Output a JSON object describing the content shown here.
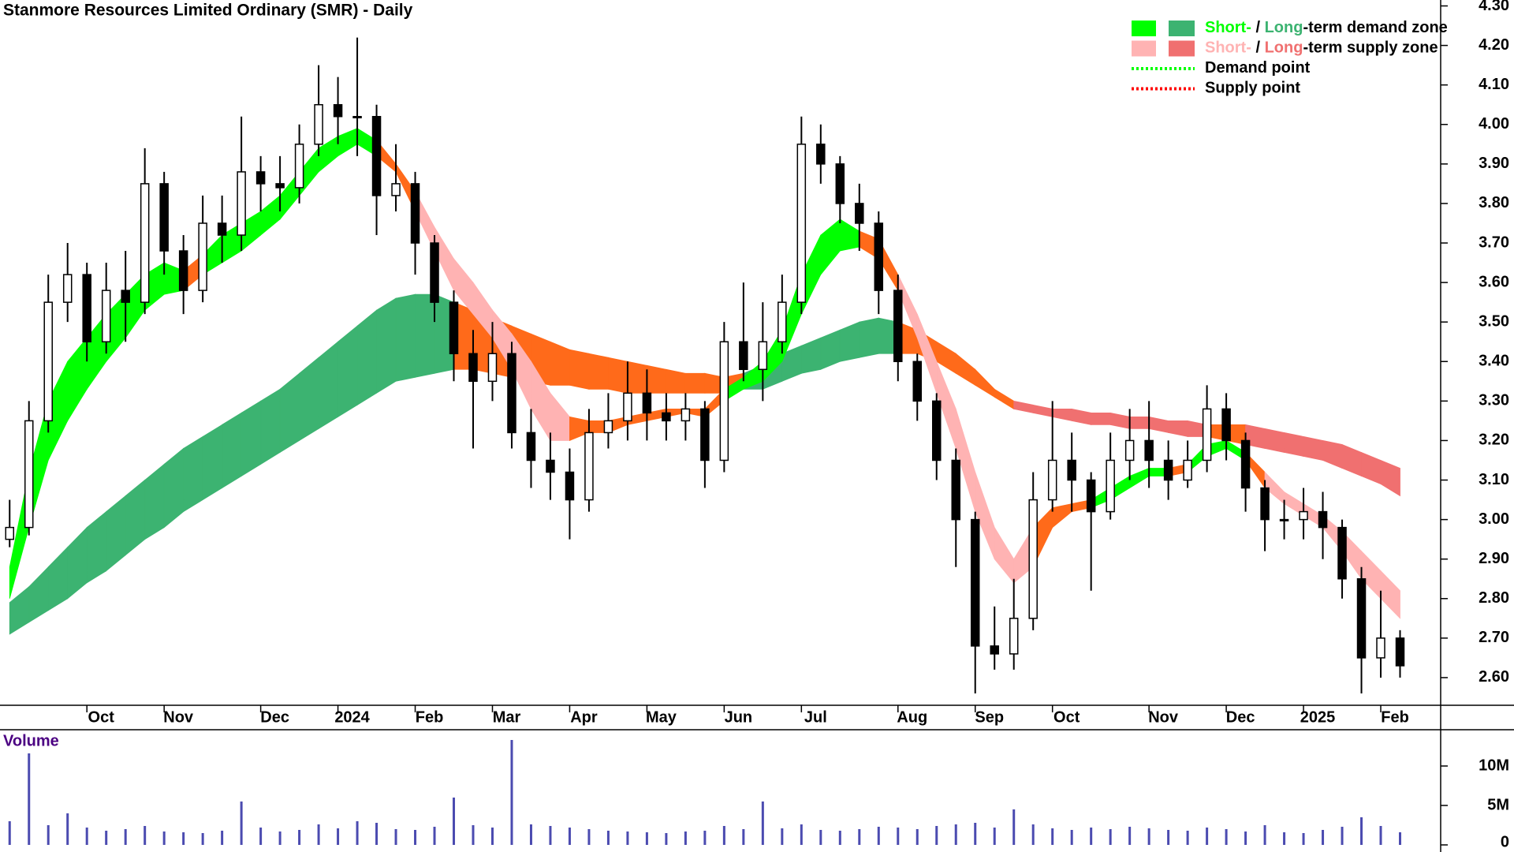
{
  "chart_data": {
    "type": "candlestick",
    "title": "Stanmore Resources Limited Ordinary (SMR) - Daily",
    "categories": [
      null,
      null,
      null,
      null,
      "Oct",
      null,
      null,
      null,
      "Nov",
      null,
      null,
      null,
      null,
      "Dec",
      null,
      null,
      null,
      "2024",
      null,
      null,
      null,
      "Feb",
      null,
      null,
      null,
      "Mar",
      null,
      null,
      null,
      "Apr",
      null,
      null,
      null,
      "May",
      null,
      null,
      null,
      "Jun",
      null,
      null,
      null,
      "Jul",
      null,
      null,
      null,
      null,
      "Aug",
      null,
      null,
      null,
      "Sep",
      null,
      null,
      null,
      "Oct",
      null,
      null,
      null,
      null,
      "Nov",
      null,
      null,
      null,
      "Dec",
      null,
      null,
      null,
      "2025",
      null,
      null,
      null,
      "Feb",
      null
    ],
    "price": {
      "open": [
        2.95,
        2.98,
        3.25,
        3.55,
        3.62,
        3.45,
        3.58,
        3.55,
        3.85,
        3.68,
        3.58,
        3.75,
        3.72,
        3.88,
        3.85,
        3.84,
        3.95,
        4.05,
        4.02,
        4.02,
        3.82,
        3.85,
        3.7,
        3.55,
        3.42,
        3.35,
        3.42,
        3.22,
        3.15,
        3.12,
        3.05,
        3.22,
        3.25,
        3.32,
        3.27,
        3.25,
        3.28,
        3.15,
        3.45,
        3.38,
        3.45,
        3.55,
        3.95,
        3.9,
        3.8,
        3.75,
        3.58,
        3.4,
        3.3,
        3.15,
        3.0,
        2.68,
        2.66,
        2.75,
        3.05,
        3.15,
        3.1,
        3.02,
        3.15,
        3.2,
        3.15,
        3.1,
        3.15,
        3.28,
        3.2,
        3.08,
        3.0,
        3.0,
        3.02,
        2.98,
        2.85,
        2.65,
        2.7
      ],
      "high": [
        3.05,
        3.3,
        3.62,
        3.7,
        3.65,
        3.65,
        3.68,
        3.94,
        3.88,
        3.72,
        3.82,
        3.82,
        4.02,
        3.92,
        3.92,
        4.0,
        4.15,
        4.12,
        4.22,
        4.05,
        3.95,
        3.88,
        3.72,
        3.58,
        3.48,
        3.5,
        3.45,
        3.28,
        3.22,
        3.18,
        3.28,
        3.32,
        3.4,
        3.38,
        3.32,
        3.32,
        3.3,
        3.5,
        3.6,
        3.55,
        3.62,
        4.02,
        4.0,
        3.92,
        3.85,
        3.78,
        3.62,
        3.42,
        3.32,
        3.18,
        3.02,
        2.78,
        2.85,
        3.12,
        3.3,
        3.22,
        3.12,
        3.22,
        3.28,
        3.3,
        3.2,
        3.2,
        3.34,
        3.32,
        3.22,
        3.1,
        3.05,
        3.08,
        3.07,
        3.0,
        2.88,
        2.82,
        2.72
      ],
      "low": [
        2.93,
        2.96,
        3.22,
        3.5,
        3.4,
        3.42,
        3.45,
        3.52,
        3.62,
        3.52,
        3.55,
        3.65,
        3.68,
        3.78,
        3.78,
        3.8,
        3.92,
        3.95,
        3.92,
        3.72,
        3.78,
        3.62,
        3.5,
        3.35,
        3.18,
        3.3,
        3.18,
        3.08,
        3.05,
        2.95,
        3.02,
        3.18,
        3.2,
        3.2,
        3.2,
        3.2,
        3.08,
        3.12,
        3.35,
        3.3,
        3.42,
        3.52,
        3.85,
        3.75,
        3.68,
        3.52,
        3.35,
        3.25,
        3.1,
        2.88,
        2.56,
        2.62,
        2.62,
        2.72,
        3.02,
        3.02,
        2.82,
        3.0,
        3.1,
        3.08,
        3.05,
        3.08,
        3.12,
        3.15,
        3.02,
        2.92,
        2.95,
        2.95,
        2.9,
        2.8,
        2.56,
        2.6,
        2.6
      ],
      "close": [
        2.98,
        3.25,
        3.55,
        3.62,
        3.45,
        3.58,
        3.55,
        3.85,
        3.68,
        3.58,
        3.75,
        3.72,
        3.88,
        3.85,
        3.84,
        3.95,
        4.05,
        4.02,
        4.02,
        3.82,
        3.85,
        3.7,
        3.55,
        3.42,
        3.35,
        3.42,
        3.22,
        3.15,
        3.12,
        3.05,
        3.22,
        3.25,
        3.32,
        3.27,
        3.25,
        3.28,
        3.15,
        3.45,
        3.38,
        3.45,
        3.55,
        3.95,
        3.9,
        3.8,
        3.75,
        3.58,
        3.4,
        3.3,
        3.15,
        3.0,
        2.68,
        2.66,
        2.75,
        3.05,
        3.15,
        3.1,
        3.02,
        3.15,
        3.2,
        3.15,
        3.1,
        3.15,
        3.28,
        3.2,
        3.08,
        3.0,
        3.0,
        3.02,
        2.98,
        2.85,
        2.65,
        2.7,
        2.63
      ]
    },
    "bands": [
      {
        "upper": [
          2.88,
          3.12,
          3.3,
          3.4,
          3.46,
          3.52,
          3.57,
          3.62,
          3.65,
          3.63,
          3.67,
          3.72,
          3.75,
          3.78,
          3.82,
          3.88,
          3.94,
          3.97,
          3.99,
          3.96,
          3.9,
          3.83,
          3.74,
          3.66,
          3.6,
          3.53,
          3.47,
          3.4,
          3.32,
          3.26,
          3.25,
          3.25,
          3.26,
          3.27,
          3.28,
          3.28,
          3.28,
          3.33,
          3.36,
          3.4,
          3.48,
          3.62,
          3.72,
          3.76,
          3.73,
          3.71,
          3.62,
          3.52,
          3.4,
          3.28,
          3.12,
          2.98,
          2.9,
          2.98,
          3.03,
          3.04,
          3.05,
          3.08,
          3.11,
          3.13,
          3.13,
          3.14,
          3.19,
          3.2,
          3.17,
          3.12,
          3.07,
          3.04,
          3.01,
          2.97,
          2.92,
          2.87,
          2.82
        ],
        "lower": [
          2.8,
          2.98,
          3.15,
          3.25,
          3.33,
          3.4,
          3.46,
          3.53,
          3.57,
          3.58,
          3.62,
          3.65,
          3.68,
          3.72,
          3.76,
          3.82,
          3.88,
          3.92,
          3.95,
          3.92,
          3.88,
          3.78,
          3.68,
          3.58,
          3.52,
          3.46,
          3.38,
          3.28,
          3.2,
          3.2,
          3.22,
          3.22,
          3.24,
          3.25,
          3.26,
          3.27,
          3.26,
          3.3,
          3.33,
          3.35,
          3.4,
          3.52,
          3.62,
          3.68,
          3.69,
          3.66,
          3.58,
          3.46,
          3.32,
          3.18,
          3.02,
          2.9,
          2.84,
          2.88,
          2.98,
          3.02,
          3.03,
          3.05,
          3.08,
          3.11,
          3.11,
          3.12,
          3.16,
          3.18,
          3.15,
          3.08,
          3.04,
          3.01,
          2.98,
          2.92,
          2.85,
          2.8,
          2.75
        ],
        "colors": [
          "#00ff00",
          "#00ff00",
          "#00ff00",
          "#00ff00",
          "#00ff00",
          "#00ff00",
          "#00ff00",
          "#00ff00",
          "#00ff00",
          "#ff6a1a",
          "#00ff00",
          "#00ff00",
          "#00ff00",
          "#00ff00",
          "#00ff00",
          "#00ff00",
          "#00ff00",
          "#00ff00",
          "#00ff00",
          "#ff6a1a",
          "#ff6a1a",
          "#ffb3b3",
          "#ffb3b3",
          "#ffb3b3",
          "#ffb3b3",
          "#ffb3b3",
          "#ffb3b3",
          "#ffb3b3",
          "#ffb3b3",
          "#ff6a1a",
          "#ff6a1a",
          "#ff6a1a",
          "#ff6a1a",
          "#ff6a1a",
          "#ff6a1a",
          "#ff6a1a",
          "#ff6a1a",
          "#00ff00",
          "#00ff00",
          "#00ff00",
          "#00ff00",
          "#00ff00",
          "#00ff00",
          "#00ff00",
          "#ff6a1a",
          "#ff6a1a",
          "#ffb3b3",
          "#ffb3b3",
          "#ffb3b3",
          "#ffb3b3",
          "#ffb3b3",
          "#ffb3b3",
          "#ffb3b3",
          "#ff6a1a",
          "#ff6a1a",
          "#ff6a1a",
          "#00ff00",
          "#00ff00",
          "#00ff00",
          "#00ff00",
          "#ff6a1a",
          "#00ff00",
          "#00ff00",
          "#00ff00",
          "#ff6a1a",
          "#ffb3b3",
          "#ffb3b3",
          "#ffb3b3",
          "#ffb3b3",
          "#ffb3b3",
          "#ffb3b3",
          "#ffb3b3",
          "#ffb3b3"
        ]
      },
      {
        "upper": [
          2.79,
          2.83,
          2.88,
          2.93,
          2.98,
          3.02,
          3.06,
          3.1,
          3.14,
          3.18,
          3.21,
          3.24,
          3.27,
          3.3,
          3.33,
          3.37,
          3.41,
          3.45,
          3.49,
          3.53,
          3.56,
          3.57,
          3.57,
          3.55,
          3.53,
          3.51,
          3.49,
          3.47,
          3.45,
          3.43,
          3.42,
          3.41,
          3.4,
          3.39,
          3.38,
          3.37,
          3.37,
          3.36,
          3.37,
          3.39,
          3.42,
          3.44,
          3.46,
          3.48,
          3.5,
          3.51,
          3.5,
          3.48,
          3.45,
          3.42,
          3.38,
          3.33,
          3.3,
          3.29,
          3.28,
          3.28,
          3.27,
          3.27,
          3.26,
          3.26,
          3.25,
          3.25,
          3.24,
          3.24,
          3.24,
          3.23,
          3.22,
          3.21,
          3.2,
          3.19,
          3.17,
          3.15,
          3.13
        ],
        "lower": [
          2.71,
          2.74,
          2.77,
          2.8,
          2.84,
          2.87,
          2.91,
          2.95,
          2.98,
          3.02,
          3.05,
          3.08,
          3.11,
          3.14,
          3.17,
          3.2,
          3.23,
          3.26,
          3.29,
          3.32,
          3.35,
          3.36,
          3.37,
          3.38,
          3.38,
          3.37,
          3.36,
          3.35,
          3.34,
          3.34,
          3.33,
          3.33,
          3.32,
          3.32,
          3.32,
          3.32,
          3.32,
          3.32,
          3.33,
          3.33,
          3.35,
          3.37,
          3.38,
          3.4,
          3.41,
          3.42,
          3.42,
          3.42,
          3.4,
          3.37,
          3.34,
          3.31,
          3.28,
          3.27,
          3.26,
          3.25,
          3.24,
          3.24,
          3.23,
          3.23,
          3.22,
          3.21,
          3.21,
          3.2,
          3.19,
          3.18,
          3.17,
          3.16,
          3.15,
          3.13,
          3.11,
          3.09,
          3.06
        ],
        "colors": [
          "#3cb371",
          "#3cb371",
          "#3cb371",
          "#3cb371",
          "#3cb371",
          "#3cb371",
          "#3cb371",
          "#3cb371",
          "#3cb371",
          "#3cb371",
          "#3cb371",
          "#3cb371",
          "#3cb371",
          "#3cb371",
          "#3cb371",
          "#3cb371",
          "#3cb371",
          "#3cb371",
          "#3cb371",
          "#3cb371",
          "#3cb371",
          "#3cb371",
          "#3cb371",
          "#ff6a1a",
          "#ff6a1a",
          "#ff6a1a",
          "#ff6a1a",
          "#ff6a1a",
          "#ff6a1a",
          "#ff6a1a",
          "#ff6a1a",
          "#ff6a1a",
          "#ff6a1a",
          "#ff6a1a",
          "#ff6a1a",
          "#ff6a1a",
          "#ff6a1a",
          "#ff6a1a",
          "#3cb371",
          "#3cb371",
          "#3cb371",
          "#3cb371",
          "#3cb371",
          "#3cb371",
          "#3cb371",
          "#3cb371",
          "#ff6a1a",
          "#ff6a1a",
          "#ff6a1a",
          "#ff6a1a",
          "#ff6a1a",
          "#ff6a1a",
          "#f07070",
          "#f07070",
          "#f07070",
          "#f07070",
          "#f07070",
          "#f07070",
          "#f07070",
          "#f07070",
          "#f07070",
          "#f07070",
          "#ff6a1a",
          "#ff6a1a",
          "#f07070",
          "#f07070",
          "#f07070",
          "#f07070",
          "#f07070",
          "#f07070",
          "#f07070",
          "#f07070",
          "#f07070"
        ]
      }
    ],
    "ylim": [
      2.53,
      4.315
    ],
    "yticks": [
      {
        "value": 2.6,
        "label": "2.60"
      },
      {
        "value": 2.7,
        "label": "2.70"
      },
      {
        "value": 2.8,
        "label": "2.80"
      },
      {
        "value": 2.9,
        "label": "2.90"
      },
      {
        "value": 3.0,
        "label": "3.00"
      },
      {
        "value": 3.1,
        "label": "3.10"
      },
      {
        "value": 3.2,
        "label": "3.20"
      },
      {
        "value": 3.3,
        "label": "3.30"
      },
      {
        "value": 3.4,
        "label": "3.40"
      },
      {
        "value": 3.5,
        "label": "3.50"
      },
      {
        "value": 3.6,
        "label": "3.60"
      },
      {
        "value": 3.7,
        "label": "3.70"
      },
      {
        "value": 3.8,
        "label": "3.80"
      },
      {
        "value": 3.9,
        "label": "3.90"
      },
      {
        "value": 4.0,
        "label": "4.00"
      },
      {
        "value": 4.1,
        "label": "4.10"
      },
      {
        "value": 4.2,
        "label": "4.20"
      },
      {
        "value": 4.3,
        "label": "4.30"
      }
    ],
    "legend": [
      {
        "parts": [
          "Short-",
          " / ",
          "Long",
          "-term demand zone"
        ],
        "colors": [
          "#00ff00",
          "#3cb371"
        ]
      },
      {
        "parts": [
          "Short-",
          " / ",
          "Long",
          "-term supply zone"
        ],
        "colors": [
          "#ffb3b3",
          "#f07070"
        ]
      },
      {
        "parts": [
          "Demand point"
        ],
        "color": "#00ff00",
        "style": "dotted"
      },
      {
        "parts": [
          "Supply point"
        ],
        "color": "#ff0000",
        "style": "dotted"
      }
    ],
    "volume": {
      "label": "Volume",
      "color": "#4b4bb0",
      "values": [
        3000000,
        11600000,
        2500000,
        4000000,
        2200000,
        1800000,
        2000000,
        2400000,
        1700000,
        1600000,
        1500000,
        1800000,
        5500000,
        2200000,
        1700000,
        1900000,
        2600000,
        2100000,
        3000000,
        2800000,
        2000000,
        1900000,
        2300000,
        6000000,
        2500000,
        2200000,
        13300000,
        2600000,
        2400000,
        2200000,
        2000000,
        1800000,
        1700000,
        1600000,
        1500000,
        1700000,
        1800000,
        2400000,
        2000000,
        5500000,
        2100000,
        2600000,
        1900000,
        1800000,
        2000000,
        2300000,
        2200000,
        2000000,
        2400000,
        2600000,
        2800000,
        2200000,
        4500000,
        2600000,
        2100000,
        1900000,
        2200000,
        2000000,
        2300000,
        2100000,
        1900000,
        1800000,
        2200000,
        2000000,
        1700000,
        2500000,
        1600000,
        1500000,
        1900000,
        2300000,
        3500000,
        2400000,
        1600000
      ],
      "ylim": [
        0,
        14600000
      ],
      "yticks": [
        0,
        {
          "value": 5000000,
          "label": "5M"
        },
        {
          "value": 10000000,
          "label": "10M"
        }
      ]
    }
  }
}
